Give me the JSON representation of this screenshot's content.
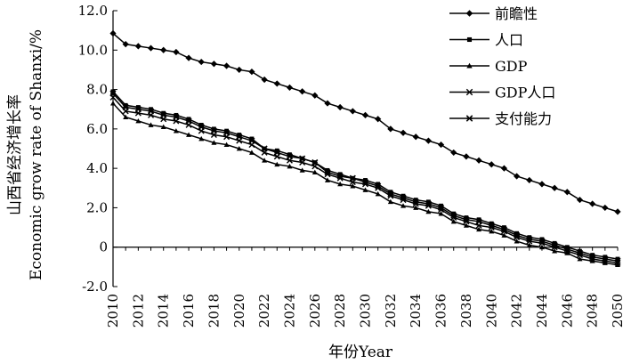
{
  "chart_data": {
    "type": "line",
    "title": "",
    "xlabel": "年份Year",
    "ylabel_cn": "山西省经济增长率",
    "ylabel_en": "Economic grow rate of Shanxi/%",
    "xlim": [
      2010,
      2050
    ],
    "ylim": [
      -2.0,
      12.0
    ],
    "yticks": [
      "12.0",
      "10.0",
      "8.0",
      "6.0",
      "4.0",
      "2.0",
      "0",
      "-2.0"
    ],
    "xticks": [
      "2010",
      "2012",
      "2014",
      "2016",
      "2018",
      "2020",
      "2022",
      "2024",
      "2026",
      "2028",
      "2030",
      "2032",
      "2034",
      "2036",
      "2038",
      "2040",
      "2042",
      "2044",
      "2046",
      "2048",
      "2050"
    ],
    "legend_position": "top-right",
    "x": [
      2010,
      2011,
      2012,
      2013,
      2014,
      2015,
      2016,
      2017,
      2018,
      2019,
      2020,
      2021,
      2022,
      2023,
      2024,
      2025,
      2026,
      2027,
      2028,
      2029,
      2030,
      2031,
      2032,
      2033,
      2034,
      2035,
      2036,
      2037,
      2038,
      2039,
      2040,
      2041,
      2042,
      2043,
      2044,
      2045,
      2046,
      2047,
      2048,
      2049,
      2050
    ],
    "series": [
      {
        "name": "前瞻性",
        "marker": "diamond",
        "values": [
          10.85,
          10.3,
          10.2,
          10.1,
          10.0,
          9.9,
          9.6,
          9.4,
          9.3,
          9.2,
          9.0,
          8.9,
          8.5,
          8.3,
          8.1,
          7.9,
          7.7,
          7.3,
          7.1,
          6.9,
          6.7,
          6.5,
          6.0,
          5.8,
          5.6,
          5.4,
          5.2,
          4.8,
          4.6,
          4.4,
          4.2,
          4.0,
          3.6,
          3.4,
          3.2,
          3.0,
          2.8,
          2.4,
          2.2,
          2.0,
          1.8
        ]
      },
      {
        "name": "人口",
        "marker": "square",
        "values": [
          7.9,
          7.2,
          7.1,
          7.0,
          6.8,
          6.7,
          6.5,
          6.2,
          6.0,
          5.9,
          5.7,
          5.5,
          5.0,
          4.9,
          4.7,
          4.5,
          4.3,
          3.9,
          3.7,
          3.5,
          3.4,
          3.2,
          2.8,
          2.6,
          2.4,
          2.3,
          2.1,
          1.7,
          1.5,
          1.4,
          1.2,
          1.0,
          0.7,
          0.5,
          0.4,
          0.2,
          0.0,
          -0.2,
          -0.4,
          -0.5,
          -0.6
        ]
      },
      {
        "name": "GDP",
        "marker": "triangle",
        "values": [
          7.3,
          6.6,
          6.4,
          6.2,
          6.1,
          5.9,
          5.7,
          5.5,
          5.3,
          5.2,
          5.0,
          4.8,
          4.4,
          4.2,
          4.1,
          3.9,
          3.8,
          3.4,
          3.2,
          3.1,
          2.9,
          2.7,
          2.3,
          2.1,
          2.0,
          1.8,
          1.7,
          1.3,
          1.1,
          0.9,
          0.8,
          0.6,
          0.3,
          0.1,
          0.0,
          -0.2,
          -0.3,
          -0.6,
          -0.7,
          -0.8,
          -0.9
        ]
      },
      {
        "name": "GDP人口",
        "marker": "x",
        "values": [
          7.6,
          6.9,
          6.8,
          6.7,
          6.5,
          6.4,
          6.2,
          5.9,
          5.7,
          5.6,
          5.4,
          5.2,
          4.8,
          4.6,
          4.4,
          4.3,
          4.1,
          3.7,
          3.5,
          3.3,
          3.2,
          3.0,
          2.6,
          2.4,
          2.2,
          2.1,
          1.9,
          1.5,
          1.3,
          1.1,
          1.0,
          0.8,
          0.5,
          0.3,
          0.2,
          0.0,
          -0.2,
          -0.4,
          -0.6,
          -0.7,
          -0.8
        ]
      },
      {
        "name": "支付能力",
        "marker": "asterisk",
        "values": [
          7.8,
          7.1,
          7.0,
          6.9,
          6.7,
          6.6,
          6.4,
          6.1,
          5.9,
          5.8,
          5.6,
          5.4,
          5.0,
          4.8,
          4.6,
          4.5,
          4.3,
          3.8,
          3.6,
          3.5,
          3.3,
          3.1,
          2.7,
          2.5,
          2.3,
          2.2,
          2.0,
          1.6,
          1.4,
          1.3,
          1.1,
          0.9,
          0.6,
          0.4,
          0.3,
          0.1,
          -0.1,
          -0.3,
          -0.5,
          -0.6,
          -0.7
        ]
      }
    ]
  }
}
